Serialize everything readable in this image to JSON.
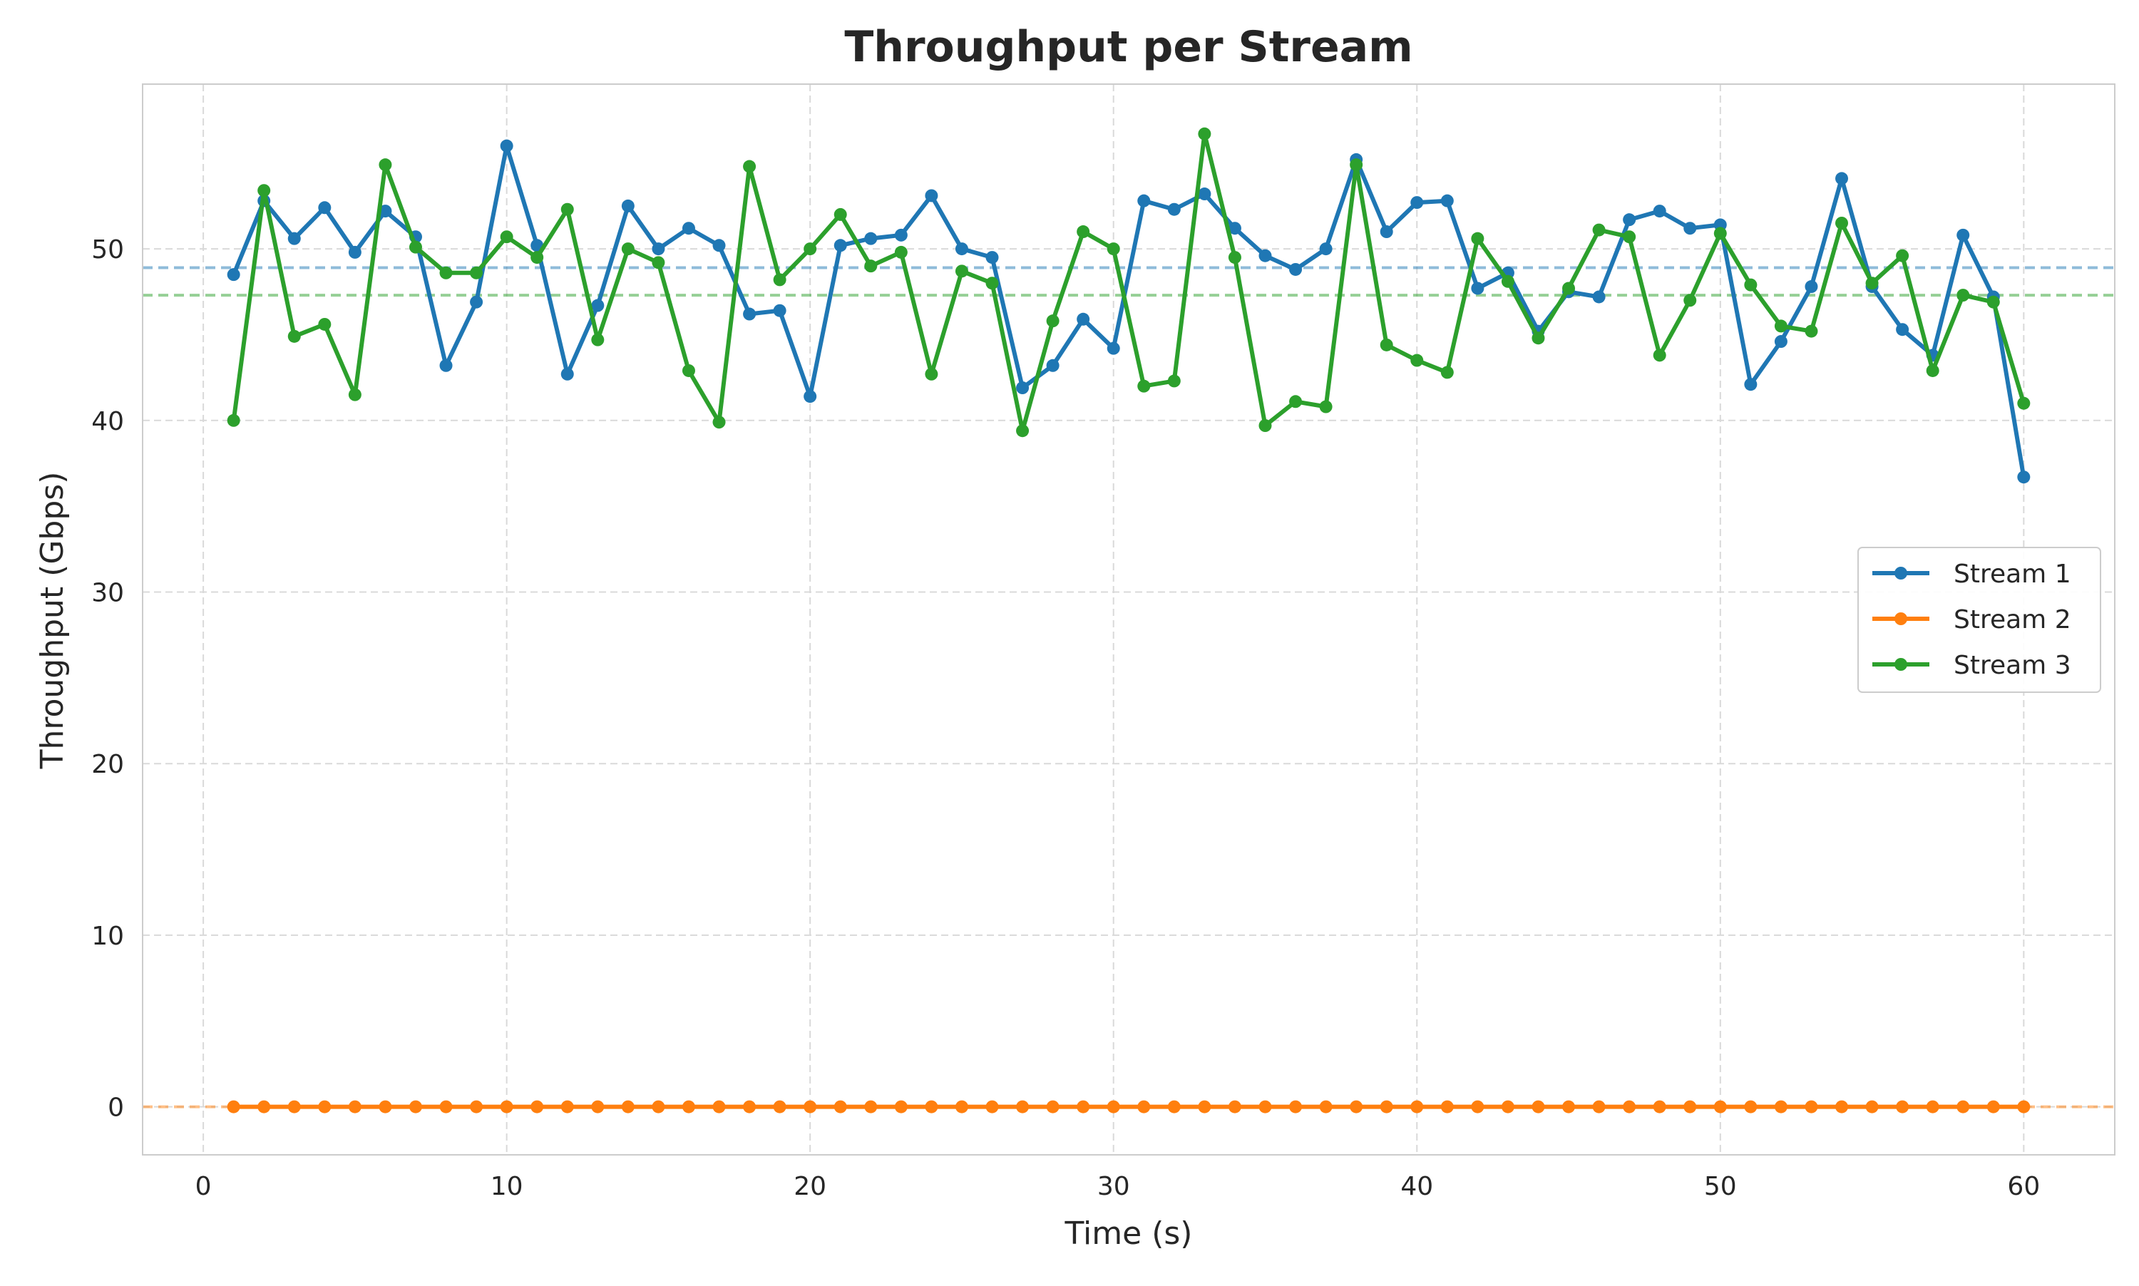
{
  "chart_data": {
    "type": "line",
    "title": "Throughput per Stream",
    "xlabel": "Time (s)",
    "ylabel": "Throughput (Gbps)",
    "xlim": [
      -2,
      63
    ],
    "ylim": [
      -2.8,
      59.6
    ],
    "xticks": [
      0,
      10,
      20,
      30,
      40,
      50,
      60
    ],
    "yticks": [
      0,
      10,
      20,
      30,
      40,
      50
    ],
    "grid": true,
    "legend_position": "center-right",
    "x": [
      1,
      2,
      3,
      4,
      5,
      6,
      7,
      8,
      9,
      10,
      11,
      12,
      13,
      14,
      15,
      16,
      17,
      18,
      19,
      20,
      21,
      22,
      23,
      24,
      25,
      26,
      27,
      28,
      29,
      30,
      31,
      32,
      33,
      34,
      35,
      36,
      37,
      38,
      39,
      40,
      41,
      42,
      43,
      44,
      45,
      46,
      47,
      48,
      49,
      50,
      51,
      52,
      53,
      54,
      55,
      56,
      57,
      58,
      59,
      60
    ],
    "series": [
      {
        "name": "Stream 1",
        "color": "#1f77b4",
        "mean": 48.9,
        "values": [
          48.5,
          52.8,
          50.6,
          52.4,
          49.8,
          52.2,
          50.7,
          43.2,
          46.9,
          56.0,
          50.2,
          42.7,
          46.7,
          52.5,
          50.0,
          51.2,
          50.2,
          46.2,
          46.4,
          41.4,
          50.2,
          50.6,
          50.8,
          53.1,
          50.0,
          49.5,
          41.9,
          43.2,
          45.9,
          44.2,
          52.8,
          52.3,
          53.2,
          51.2,
          49.6,
          48.8,
          50.0,
          55.2,
          51.0,
          52.7,
          52.8,
          47.7,
          48.6,
          45.2,
          47.5,
          47.2,
          51.7,
          52.2,
          51.2,
          51.4,
          42.1,
          44.6,
          47.8,
          54.1,
          47.8,
          45.3,
          43.8,
          50.8,
          47.2,
          36.7
        ]
      },
      {
        "name": "Stream 2",
        "color": "#ff7f0e",
        "mean": 0.0,
        "values": [
          0,
          0,
          0,
          0,
          0,
          0,
          0,
          0,
          0,
          0,
          0,
          0,
          0,
          0,
          0,
          0,
          0,
          0,
          0,
          0,
          0,
          0,
          0,
          0,
          0,
          0,
          0,
          0,
          0,
          0,
          0,
          0,
          0,
          0,
          0,
          0,
          0,
          0,
          0,
          0,
          0,
          0,
          0,
          0,
          0,
          0,
          0,
          0,
          0,
          0,
          0,
          0,
          0,
          0,
          0,
          0,
          0,
          0,
          0,
          0
        ]
      },
      {
        "name": "Stream 3",
        "color": "#2ca02c",
        "mean": 47.3,
        "values": [
          40.0,
          53.4,
          44.9,
          45.6,
          41.5,
          54.9,
          50.1,
          48.6,
          48.6,
          50.7,
          49.5,
          52.3,
          44.7,
          50.0,
          49.2,
          42.9,
          39.9,
          54.8,
          48.2,
          50.0,
          52.0,
          49.0,
          49.8,
          42.7,
          48.7,
          48.0,
          39.4,
          45.8,
          51.0,
          50.0,
          42.0,
          42.3,
          56.7,
          49.5,
          39.7,
          41.1,
          40.8,
          54.9,
          44.4,
          43.5,
          42.8,
          50.6,
          48.1,
          44.8,
          47.7,
          51.1,
          50.7,
          43.8,
          47.0,
          50.9,
          47.9,
          45.5,
          45.2,
          51.5,
          48.0,
          49.6,
          42.9,
          47.3,
          46.9,
          41.0
        ]
      }
    ]
  }
}
